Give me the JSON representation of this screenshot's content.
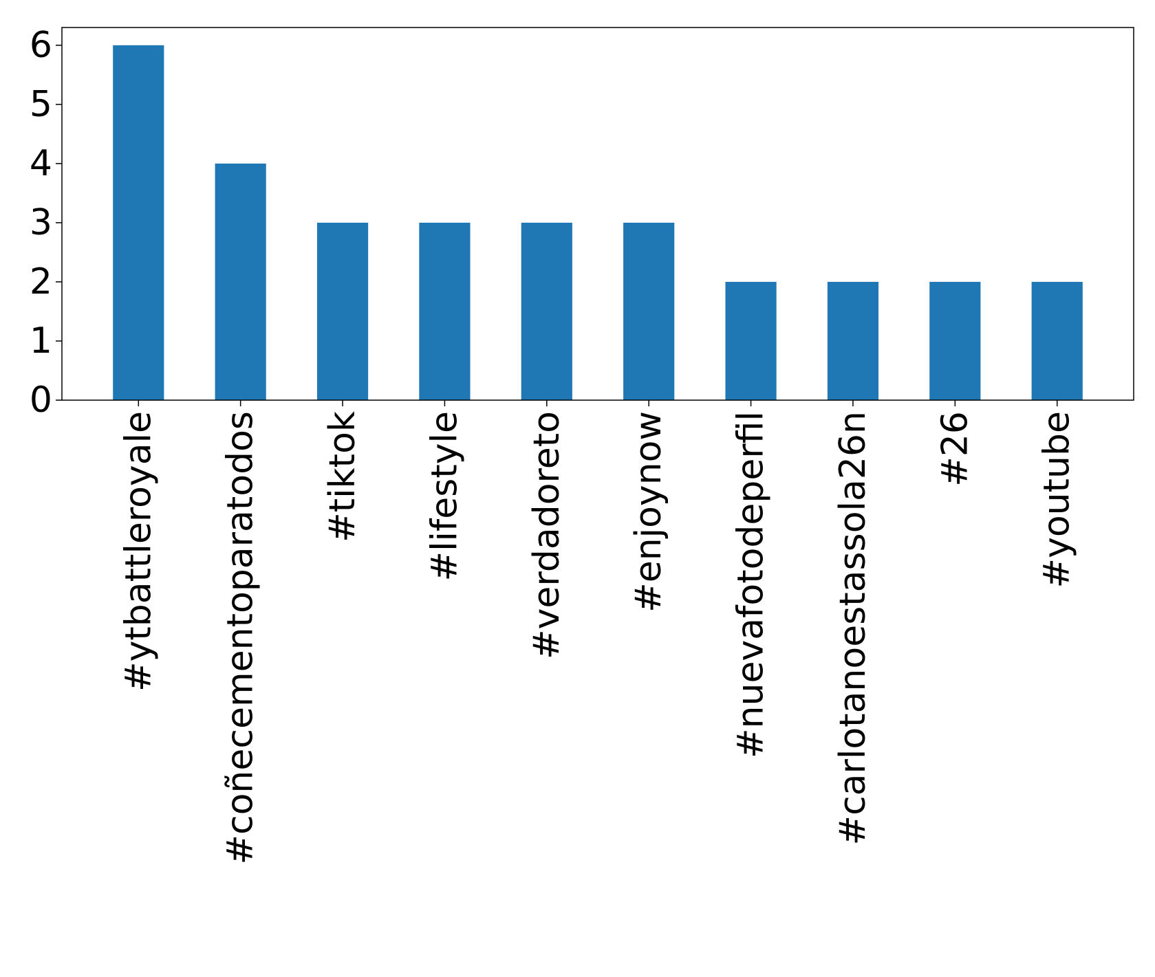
{
  "chart_data": {
    "type": "bar",
    "title": "",
    "xlabel": "",
    "ylabel": "",
    "categories": [
      "#ytbattleroyale",
      "#coñecementoparatodos",
      "#tiktok",
      "#lifestyle",
      "#verdadoreto",
      "#enjoynow",
      "#nuevafotodeperfil",
      "#carlotanoestassola26n",
      "#26",
      "#youtube"
    ],
    "values": [
      6,
      4,
      3,
      3,
      3,
      3,
      2,
      2,
      2,
      2
    ],
    "ylim": [
      0,
      6.3
    ],
    "yticks": [
      "0",
      "1",
      "2",
      "3",
      "4",
      "5",
      "6"
    ],
    "bar_color": "#1f77b4",
    "grid": false,
    "legend": "none"
  }
}
